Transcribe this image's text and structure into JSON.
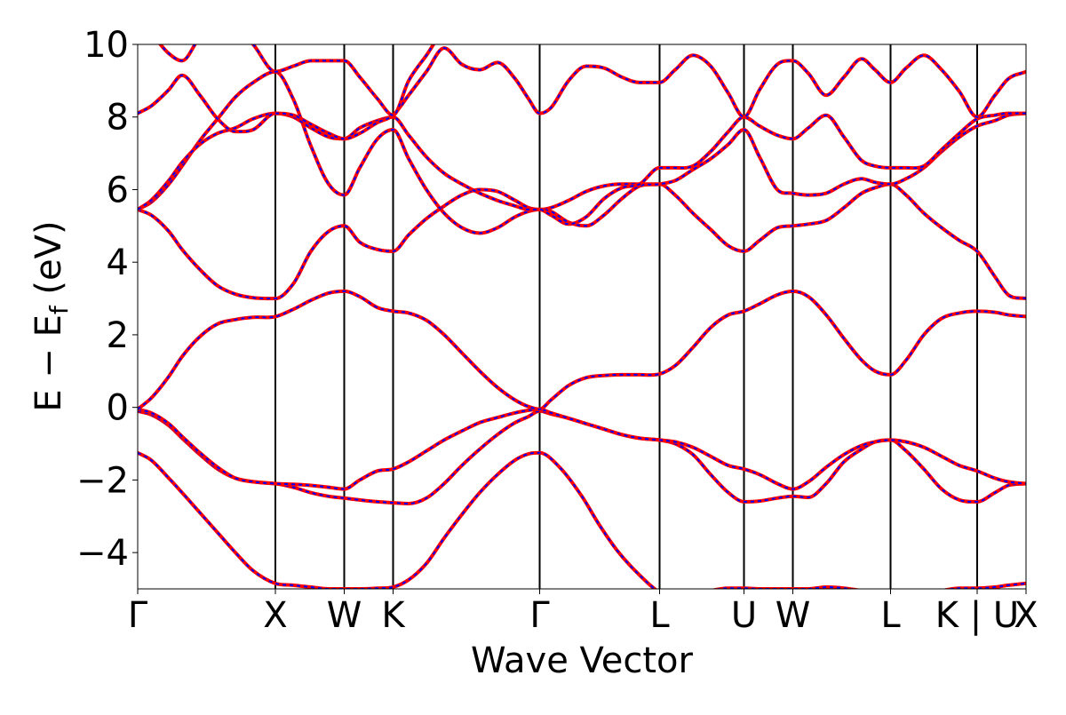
{
  "chart_data": {
    "type": "line",
    "title": "",
    "xlabel": "Wave Vector",
    "ylabel": {
      "main": "E − E",
      "subscript": "f",
      "unit": " (eV)"
    },
    "xlim": [
      0,
      20
    ],
    "ylim": [
      -5,
      10
    ],
    "grid": false,
    "yticks": [
      -4,
      -2,
      0,
      2,
      4,
      6,
      8,
      10
    ],
    "ytick_labels": [
      "−4",
      "−2",
      "0",
      "2",
      "4",
      "6",
      "8",
      "10"
    ],
    "kpoints": [
      {
        "x": 0.0,
        "label": "Γ",
        "line": false
      },
      {
        "x": 3.1,
        "label": "X",
        "line": true
      },
      {
        "x": 4.65,
        "label": "W",
        "line": true
      },
      {
        "x": 5.75,
        "label": "K",
        "line": true
      },
      {
        "x": 9.05,
        "label": "Γ",
        "line": true
      },
      {
        "x": 11.75,
        "label": "L",
        "line": true
      },
      {
        "x": 13.65,
        "label": "U",
        "line": true
      },
      {
        "x": 14.75,
        "label": "W",
        "line": true
      },
      {
        "x": 16.95,
        "label": "L",
        "line": true
      },
      {
        "x": 18.9,
        "label": "K | U",
        "line": true
      },
      {
        "x": 20.0,
        "label": "X",
        "line": false
      }
    ],
    "series_styles": [
      {
        "color": "#ff0000",
        "dash": "solid",
        "width": 4
      },
      {
        "color": "#0000ff",
        "dash": "dashed",
        "width": 2
      }
    ],
    "bands": [
      {
        "x": [
          0,
          0.3,
          0.7,
          1.0,
          1.4,
          1.8,
          2.2,
          2.6,
          3.1,
          3.5,
          3.9,
          4.3,
          4.65,
          5.0,
          5.4,
          5.75,
          6.1,
          6.5,
          6.9,
          7.3,
          7.7,
          8.1,
          8.5,
          8.8,
          9.05,
          9.5,
          10.0,
          10.4,
          10.8,
          11.2,
          11.75,
          12.1,
          12.5,
          12.9,
          13.3,
          13.65,
          14.0,
          14.4,
          14.75,
          15.1,
          15.5,
          15.9,
          16.3,
          16.6,
          16.95,
          17.3,
          17.7,
          18.1,
          18.5,
          18.9,
          19.3,
          19.6,
          20.0
        ],
        "y": [
          -1.25,
          -1.45,
          -1.95,
          -2.35,
          -2.9,
          -3.45,
          -4.0,
          -4.5,
          -4.85,
          -4.9,
          -4.95,
          -5.0,
          -5.0,
          -5.0,
          -4.98,
          -4.95,
          -4.75,
          -4.3,
          -3.6,
          -2.95,
          -2.35,
          -1.85,
          -1.45,
          -1.28,
          -1.25,
          -1.65,
          -2.45,
          -3.25,
          -3.95,
          -4.5,
          -5.1,
          -5.3,
          -5.2,
          -5.05,
          -4.98,
          -4.98,
          -5.0,
          -5.0,
          -5.0,
          -5.0,
          -4.95,
          -4.98,
          -5.05,
          -5.1,
          -5.1,
          -5.1,
          -5.1,
          -5.05,
          -4.98,
          -4.98,
          -4.95,
          -4.9,
          -4.85
        ]
      },
      {
        "x": [
          0,
          0.3,
          0.7,
          1.0,
          1.4,
          1.8,
          2.2,
          2.6,
          3.1,
          3.5,
          3.9,
          4.3,
          4.65,
          5.0,
          5.4,
          5.75,
          6.1,
          6.5,
          6.9,
          7.3,
          7.7,
          8.1,
          8.5,
          8.8,
          9.05,
          9.3,
          9.7,
          10.1,
          10.5,
          10.9,
          11.3,
          11.75,
          12.1,
          12.5,
          12.9,
          13.3,
          13.65,
          14.0,
          14.4,
          14.75,
          15.1,
          15.5,
          15.9,
          16.3,
          16.6,
          16.95,
          17.3,
          17.7,
          18.1,
          18.5,
          18.9,
          19.3,
          19.6,
          20.0
        ],
        "y": [
          -0.1,
          -0.2,
          -0.5,
          -0.85,
          -1.3,
          -1.7,
          -1.95,
          -2.05,
          -2.1,
          -2.2,
          -2.35,
          -2.45,
          -2.5,
          -2.55,
          -2.6,
          -2.63,
          -2.65,
          -2.5,
          -2.1,
          -1.6,
          -1.15,
          -0.75,
          -0.42,
          -0.25,
          -0.1,
          -0.18,
          -0.3,
          -0.45,
          -0.6,
          -0.75,
          -0.85,
          -0.9,
          -1.0,
          -1.3,
          -1.85,
          -2.35,
          -2.6,
          -2.58,
          -2.5,
          -2.45,
          -2.48,
          -2.1,
          -1.5,
          -1.15,
          -0.95,
          -0.9,
          -1.2,
          -1.7,
          -2.25,
          -2.55,
          -2.6,
          -2.35,
          -2.15,
          -2.1
        ]
      },
      {
        "x": [
          0,
          0.3,
          0.7,
          1.0,
          1.4,
          1.8,
          2.2,
          2.6,
          3.1,
          3.5,
          3.9,
          4.3,
          4.65,
          5.0,
          5.4,
          5.75,
          6.1,
          6.5,
          6.9,
          7.3,
          7.7,
          8.1,
          8.5,
          8.8,
          9.05,
          9.3,
          9.7,
          10.1,
          10.5,
          10.9,
          11.3,
          11.75,
          12.1,
          12.5,
          12.9,
          13.3,
          13.65,
          14.0,
          14.4,
          14.75,
          15.1,
          15.5,
          15.9,
          16.3,
          16.6,
          16.95,
          17.3,
          17.7,
          18.1,
          18.5,
          18.9,
          19.3,
          19.6,
          20.0
        ],
        "y": [
          -0.05,
          -0.15,
          -0.45,
          -0.8,
          -1.25,
          -1.65,
          -1.95,
          -2.05,
          -2.1,
          -2.12,
          -2.15,
          -2.2,
          -2.25,
          -2.0,
          -1.75,
          -1.7,
          -1.5,
          -1.2,
          -0.9,
          -0.65,
          -0.42,
          -0.28,
          -0.15,
          -0.08,
          -0.05,
          -0.15,
          -0.3,
          -0.45,
          -0.6,
          -0.75,
          -0.85,
          -0.9,
          -0.95,
          -1.1,
          -1.35,
          -1.6,
          -1.7,
          -1.85,
          -2.1,
          -2.25,
          -2.05,
          -1.65,
          -1.3,
          -1.05,
          -0.95,
          -0.9,
          -0.95,
          -1.1,
          -1.35,
          -1.6,
          -1.75,
          -1.95,
          -2.05,
          -2.1
        ]
      },
      {
        "x": [
          0,
          0.3,
          0.7,
          1.0,
          1.4,
          1.8,
          2.2,
          2.6,
          3.1,
          3.5,
          3.9,
          4.3,
          4.65,
          5.0,
          5.4,
          5.75,
          6.1,
          6.5,
          6.9,
          7.3,
          7.7,
          8.1,
          8.5,
          8.8,
          9.05,
          9.3,
          9.7,
          10.1,
          10.5,
          10.9,
          11.3,
          11.75,
          12.1,
          12.5,
          12.9,
          13.3,
          13.65,
          14.0,
          14.4,
          14.75,
          15.1,
          15.5,
          15.9,
          16.3,
          16.6,
          16.95,
          17.3,
          17.7,
          18.1,
          18.5,
          18.9,
          19.3,
          19.6,
          20.0
        ],
        "y": [
          -0.05,
          0.25,
          0.85,
          1.4,
          1.95,
          2.3,
          2.42,
          2.48,
          2.5,
          2.7,
          2.95,
          3.15,
          3.2,
          3.05,
          2.75,
          2.65,
          2.6,
          2.4,
          2.0,
          1.5,
          1.0,
          0.55,
          0.2,
          0.02,
          -0.05,
          0.2,
          0.6,
          0.82,
          0.88,
          0.9,
          0.9,
          0.92,
          1.15,
          1.65,
          2.2,
          2.55,
          2.65,
          2.85,
          3.1,
          3.2,
          3.05,
          2.55,
          1.9,
          1.3,
          1.0,
          0.9,
          1.3,
          2.0,
          2.45,
          2.6,
          2.65,
          2.62,
          2.55,
          2.5
        ]
      },
      {
        "x": [
          0,
          0.3,
          0.7,
          1.0,
          1.4,
          1.8,
          2.2,
          2.6,
          3.1,
          3.5,
          3.9,
          4.3,
          4.65,
          5.0,
          5.4,
          5.75,
          6.1,
          6.5,
          6.9,
          7.3,
          7.7,
          8.1,
          8.5,
          8.8,
          9.05,
          9.3,
          9.7,
          10.1,
          10.5,
          10.9,
          11.3,
          11.75,
          12.1,
          12.5,
          12.9,
          13.3,
          13.65,
          14.0,
          14.4,
          14.75,
          15.1,
          15.5,
          15.9,
          16.3,
          16.6,
          16.95,
          17.3,
          17.7,
          18.1,
          18.5,
          18.9,
          19.3,
          19.6,
          20.0
        ],
        "y": [
          5.45,
          5.3,
          4.85,
          4.35,
          3.8,
          3.35,
          3.12,
          3.02,
          3.0,
          3.4,
          4.3,
          4.85,
          5.0,
          4.55,
          4.35,
          4.3,
          4.75,
          5.2,
          5.55,
          5.85,
          6.0,
          5.95,
          5.7,
          5.5,
          5.45,
          5.5,
          5.7,
          5.95,
          6.1,
          6.15,
          6.15,
          6.15,
          5.85,
          5.35,
          4.9,
          4.45,
          4.3,
          4.6,
          4.95,
          5.0,
          5.05,
          5.15,
          5.5,
          5.9,
          6.05,
          6.15,
          5.85,
          5.35,
          4.95,
          4.6,
          4.3,
          3.6,
          3.1,
          3.0
        ]
      },
      {
        "x": [
          0,
          0.3,
          0.7,
          1.0,
          1.4,
          1.8,
          2.2,
          2.6,
          3.1,
          3.5,
          3.9,
          4.3,
          4.65,
          5.0,
          5.4,
          5.75,
          6.1,
          6.5,
          6.9,
          7.3,
          7.7,
          8.1,
          8.5,
          8.8,
          9.05,
          9.3,
          9.7,
          10.1,
          10.5,
          10.9,
          11.3,
          11.75,
          12.1,
          12.5,
          12.9,
          13.3,
          13.65,
          14.0,
          14.4,
          14.75,
          15.1,
          15.5,
          15.9,
          16.3,
          16.6,
          16.95,
          17.3,
          17.7,
          18.1,
          18.5,
          18.9,
          19.3,
          19.6,
          20.0
        ],
        "y": [
          5.45,
          5.65,
          6.15,
          6.65,
          7.35,
          7.95,
          8.55,
          8.95,
          9.25,
          8.5,
          7.2,
          6.15,
          5.85,
          6.6,
          7.4,
          7.65,
          6.85,
          6.0,
          5.35,
          4.95,
          4.8,
          4.95,
          5.25,
          5.4,
          5.45,
          5.4,
          5.1,
          5.0,
          5.3,
          5.75,
          6.1,
          6.15,
          6.25,
          6.55,
          6.85,
          7.25,
          7.65,
          6.9,
          6.0,
          5.9,
          5.85,
          5.9,
          6.15,
          6.3,
          6.2,
          6.15,
          6.3,
          6.6,
          7.05,
          7.45,
          7.75,
          7.9,
          8.05,
          8.1
        ]
      },
      {
        "x": [
          0,
          0.3,
          0.7,
          1.0,
          1.4,
          1.8,
          2.2,
          2.6,
          3.1,
          3.5,
          3.9,
          4.3,
          4.65,
          5.0,
          5.4,
          5.75,
          6.1,
          6.5,
          6.9,
          7.3,
          7.7,
          8.1,
          8.5,
          8.8,
          9.05,
          9.3,
          9.7,
          10.1,
          10.5,
          10.9,
          11.3,
          11.75,
          12.1,
          12.5,
          12.9,
          13.3,
          13.65,
          14.0,
          14.4,
          14.75,
          15.1,
          15.5,
          15.9,
          16.3,
          16.6,
          16.95,
          17.3,
          17.7,
          18.1,
          18.5,
          18.9,
          19.3,
          19.6,
          20.0
        ],
        "y": [
          5.45,
          5.7,
          6.25,
          6.75,
          7.25,
          7.55,
          7.7,
          7.95,
          8.1,
          8.0,
          7.7,
          7.45,
          7.4,
          7.7,
          7.9,
          8.0,
          7.5,
          6.9,
          6.45,
          6.15,
          5.9,
          5.7,
          5.55,
          5.45,
          5.45,
          5.3,
          5.05,
          5.25,
          5.75,
          6.05,
          6.15,
          6.6,
          6.6,
          6.65,
          7.05,
          7.6,
          8.0,
          7.75,
          7.5,
          7.4,
          7.7,
          8.05,
          7.45,
          6.8,
          6.65,
          6.6,
          6.6,
          6.65,
          7.1,
          7.55,
          7.95,
          8.05,
          8.1,
          8.1
        ]
      },
      {
        "x": [
          0,
          0.3,
          0.7,
          1.0,
          1.4,
          1.8,
          2.2,
          2.6,
          3.1,
          3.5,
          3.9,
          4.3,
          4.65,
          5.0,
          5.4,
          5.75,
          6.1,
          6.5,
          6.9,
          7.3,
          7.7,
          8.1,
          8.5,
          8.8,
          9.05,
          9.3,
          9.7,
          10.1,
          10.5,
          10.9,
          11.3,
          11.75,
          12.1,
          12.5,
          12.9,
          13.3,
          13.65,
          14.0,
          14.4,
          14.75,
          15.1,
          15.5,
          15.9,
          16.3,
          16.6,
          16.95,
          17.3,
          17.7,
          18.1,
          18.5,
          18.9,
          19.3,
          19.6,
          20.0
        ],
        "y": [
          8.1,
          8.3,
          8.75,
          9.15,
          8.6,
          7.95,
          7.6,
          7.65,
          8.1,
          8.05,
          7.8,
          7.55,
          7.4,
          7.55,
          7.85,
          8.05,
          8.6,
          9.25,
          9.9,
          9.45,
          9.3,
          9.5,
          9.05,
          8.5,
          8.1,
          8.25,
          9.0,
          9.4,
          9.35,
          9.1,
          8.95,
          8.95,
          9.3,
          9.7,
          9.4,
          8.65,
          8.0,
          8.75,
          9.45,
          9.55,
          9.2,
          8.6,
          9.1,
          9.6,
          9.3,
          8.95,
          9.35,
          9.7,
          9.3,
          8.7,
          8.0,
          8.6,
          9.05,
          9.25
        ]
      },
      {
        "x": [
          0,
          0.3,
          0.7,
          1.0,
          1.4,
          1.8,
          2.2,
          2.6,
          3.1,
          3.5,
          3.9,
          4.3,
          4.65,
          5.0,
          5.4,
          5.75,
          6.1,
          6.5,
          6.9,
          7.3,
          7.7,
          8.1
        ],
        "y": [
          10.6,
          10.3,
          9.75,
          9.55,
          10.2,
          10.6,
          10.5,
          10.0,
          9.25,
          9.4,
          9.55,
          9.55,
          9.55,
          9.1,
          8.5,
          8.05,
          9.0,
          9.7,
          10.4,
          10.6,
          10.7,
          10.8
        ]
      }
    ]
  }
}
